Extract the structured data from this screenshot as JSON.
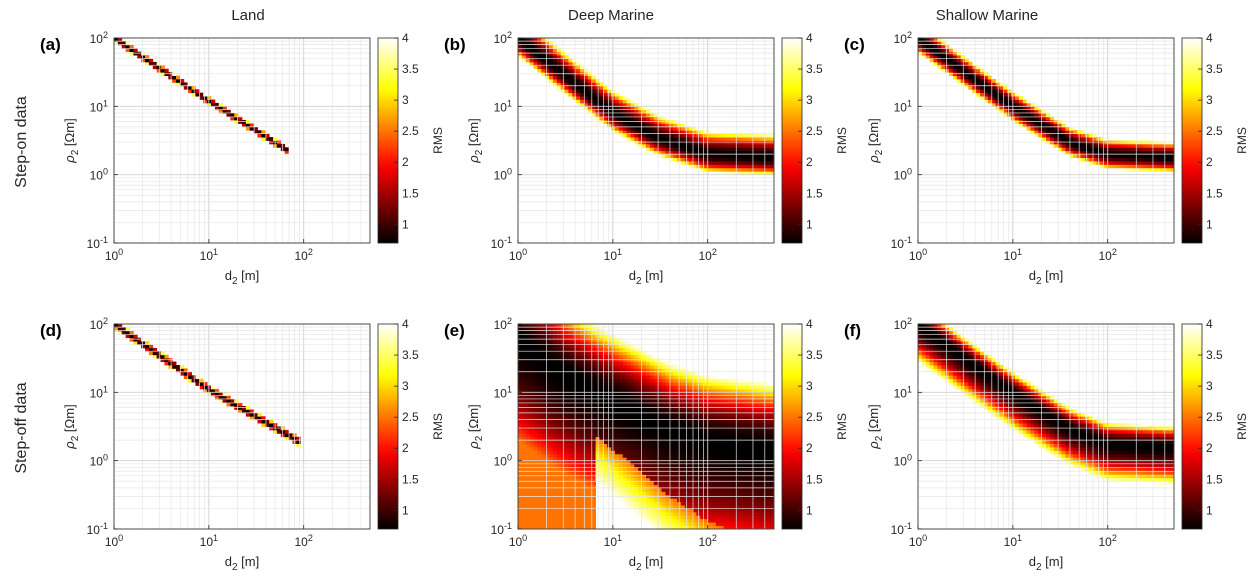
{
  "column_titles": [
    "Land",
    "Deep Marine",
    "Shallow Marine"
  ],
  "row_titles": [
    "Step-on data",
    "Step-off data"
  ],
  "chart_data": [
    {
      "type": "heatmap",
      "panel": "(a)",
      "scenario": "Land",
      "data": "Step-on data",
      "xlabel": "d_2 [m]",
      "ylabel": "ρ_2 [Ωm]",
      "x_scale": "log",
      "y_scale": "log",
      "xlim": [
        1,
        500
      ],
      "ylim": [
        0.1,
        100
      ],
      "x_ticks": [
        "10^0",
        "10^1",
        "10^2"
      ],
      "y_ticks": [
        "10^-1",
        "10^0",
        "10^1",
        "10^2"
      ],
      "grid": true,
      "colorbar": {
        "label": "RMS",
        "range": [
          0.7,
          4
        ],
        "ticks": [
          "1",
          "1.5",
          "2",
          "2.5",
          "3",
          "3.5",
          "4"
        ],
        "colormap": "hot"
      },
      "trough": {
        "points": [
          [
            1,
            100
          ],
          [
            10,
            12
          ],
          [
            70,
            2.2
          ]
        ],
        "min_rms": 0.7,
        "halfwidth_lower_decades": 0.06,
        "halfwidth_upper_decades": 0.06,
        "background_rms": 12
      }
    },
    {
      "type": "heatmap",
      "panel": "(b)",
      "scenario": "Deep Marine",
      "data": "Step-on data",
      "xlabel": "d_2 [m]",
      "ylabel": "ρ_2 [Ωm]",
      "x_scale": "log",
      "y_scale": "log",
      "xlim": [
        1,
        500
      ],
      "ylim": [
        0.1,
        100
      ],
      "x_ticks": [
        "10^0",
        "10^1",
        "10^2"
      ],
      "y_ticks": [
        "10^-1",
        "10^0",
        "10^1",
        "10^2"
      ],
      "grid": true,
      "colorbar": {
        "label": "RMS",
        "range": [
          0.7,
          4
        ],
        "ticks": [
          "1",
          "1.5",
          "2",
          "2.5",
          "3",
          "3.5",
          "4"
        ],
        "colormap": "hot"
      },
      "trough": {
        "points": [
          [
            1,
            100
          ],
          [
            3,
            30
          ],
          [
            10,
            8
          ],
          [
            30,
            3.5
          ],
          [
            100,
            2
          ],
          [
            500,
            1.8
          ]
        ],
        "min_rms": 0.7,
        "halfwidth_lower_decades": 0.27,
        "halfwidth_upper_decades": 0.33,
        "background_rms": 12
      }
    },
    {
      "type": "heatmap",
      "panel": "(c)",
      "scenario": "Shallow Marine",
      "data": "Step-on data",
      "xlabel": "d_2 [m]",
      "ylabel": "ρ_2 [Ωm]",
      "x_scale": "log",
      "y_scale": "log",
      "xlim": [
        1,
        500
      ],
      "ylim": [
        0.1,
        100
      ],
      "x_ticks": [
        "10^0",
        "10^1",
        "10^2"
      ],
      "y_ticks": [
        "10^-1",
        "10^0",
        "10^1",
        "10^2"
      ],
      "grid": true,
      "colorbar": {
        "label": "RMS",
        "range": [
          0.7,
          4
        ],
        "ticks": [
          "1",
          "1.5",
          "2",
          "2.5",
          "3",
          "3.5",
          "4"
        ],
        "colormap": "hot"
      },
      "trough": {
        "points": [
          [
            1,
            100
          ],
          [
            10,
            10
          ],
          [
            40,
            3
          ],
          [
            100,
            2
          ],
          [
            500,
            1.8
          ]
        ],
        "min_rms": 0.7,
        "halfwidth_lower_decades": 0.22,
        "halfwidth_upper_decades": 0.22,
        "background_rms": 12
      }
    },
    {
      "type": "heatmap",
      "panel": "(d)",
      "scenario": "Land",
      "data": "Step-off data",
      "xlabel": "d_2 [m]",
      "ylabel": "ρ_2 [Ωm]",
      "x_scale": "log",
      "y_scale": "log",
      "xlim": [
        1,
        500
      ],
      "ylim": [
        0.1,
        100
      ],
      "x_ticks": [
        "10^0",
        "10^1",
        "10^2"
      ],
      "y_ticks": [
        "10^-1",
        "10^0",
        "10^1",
        "10^2"
      ],
      "grid": true,
      "colorbar": {
        "label": "RMS",
        "range": [
          0.7,
          4
        ],
        "ticks": [
          "1",
          "1.5",
          "2",
          "2.5",
          "3",
          "3.5",
          "4"
        ],
        "colormap": "hot"
      },
      "trough": {
        "points": [
          [
            1,
            100
          ],
          [
            10,
            11
          ],
          [
            90,
            1.9
          ]
        ],
        "min_rms": 0.7,
        "halfwidth_lower_decades": 0.07,
        "halfwidth_upper_decades": 0.07,
        "background_rms": 12
      }
    },
    {
      "type": "heatmap",
      "panel": "(e)",
      "scenario": "Deep Marine",
      "data": "Step-off data",
      "xlabel": "d_2 [m]",
      "ylabel": "ρ_2 [Ωm]",
      "x_scale": "log",
      "y_scale": "log",
      "xlim": [
        1,
        500
      ],
      "ylim": [
        0.1,
        100
      ],
      "x_ticks": [
        "10^0",
        "10^1",
        "10^2"
      ],
      "y_ticks": [
        "10^-1",
        "10^0",
        "10^1",
        "10^2"
      ],
      "grid": true,
      "colorbar": {
        "label": "RMS",
        "range": [
          0.7,
          4
        ],
        "ticks": [
          "1",
          "1.5",
          "2",
          "2.5",
          "3",
          "3.5",
          "4"
        ],
        "colormap": "hot"
      },
      "trough": {
        "points": [
          [
            1,
            60
          ],
          [
            3,
            20
          ],
          [
            10,
            8
          ],
          [
            40,
            3
          ],
          [
            100,
            2
          ],
          [
            500,
            1.5
          ]
        ],
        "min_rms": 0.7,
        "halfwidth_lower_decades": 2.0,
        "halfwidth_upper_decades": 0.95,
        "background_rms": 12
      },
      "lower_region_rms": 2.5
    },
    {
      "type": "heatmap",
      "panel": "(f)",
      "scenario": "Shallow Marine",
      "data": "Step-off data",
      "xlabel": "d_2 [m]",
      "ylabel": "ρ_2 [Ωm]",
      "x_scale": "log",
      "y_scale": "log",
      "xlim": [
        1,
        500
      ],
      "ylim": [
        0.1,
        100
      ],
      "x_ticks": [
        "10^0",
        "10^1",
        "10^2"
      ],
      "y_ticks": [
        "10^-1",
        "10^0",
        "10^1",
        "10^2"
      ],
      "grid": true,
      "colorbar": {
        "label": "RMS",
        "range": [
          0.7,
          4
        ],
        "ticks": [
          "1",
          "1.5",
          "2",
          "2.5",
          "3",
          "3.5",
          "4"
        ],
        "colormap": "hot"
      },
      "trough": {
        "points": [
          [
            1,
            100
          ],
          [
            10,
            10
          ],
          [
            40,
            3
          ],
          [
            100,
            1.8
          ],
          [
            500,
            1.6
          ]
        ],
        "min_rms": 0.7,
        "halfwidth_lower_decades": 0.55,
        "halfwidth_upper_decades": 0.3,
        "background_rms": 12
      }
    }
  ]
}
